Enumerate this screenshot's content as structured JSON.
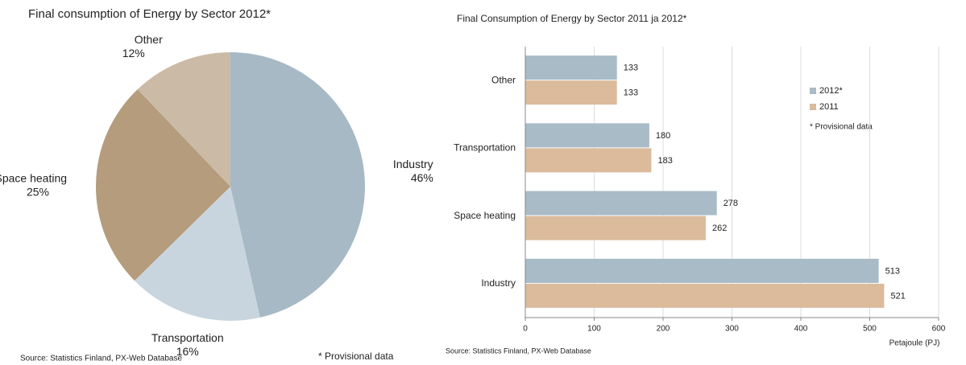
{
  "chart_data": [
    {
      "type": "pie",
      "title": "Final consumption of Energy by Sector 2012*",
      "categories": [
        "Industry",
        "Transportation",
        "Space heating",
        "Other"
      ],
      "values": [
        46,
        16,
        25,
        12
      ],
      "value_labels": [
        "46%",
        "16%",
        "25%",
        "12%"
      ],
      "colors": [
        "#a7b9c4",
        "#c9d5de",
        "#b49c7c",
        "#cbbba6"
      ],
      "source": "Source: Statistics Finland, PX-Web Database",
      "note": "* Provisional data"
    },
    {
      "type": "hbar",
      "title": "Final Consumption of Energy by Sector 2011 ja 2012*",
      "categories": [
        "Other",
        "Transportation",
        "Space heating",
        "Industry"
      ],
      "series": [
        {
          "name": "2012*",
          "color": "#a8bbc6",
          "values": [
            133,
            180,
            278,
            513
          ]
        },
        {
          "name": "2011",
          "color": "#dbbb9c",
          "values": [
            133,
            183,
            262,
            521
          ]
        }
      ],
      "xlim": [
        0,
        600
      ],
      "xticks": [
        0,
        100,
        200,
        300,
        400,
        500,
        600
      ],
      "grid": true,
      "x_label": "Petajoule (PJ)",
      "note": "* Provisional data",
      "source": "Source: Statistics Finland, PX-Web Database"
    }
  ]
}
